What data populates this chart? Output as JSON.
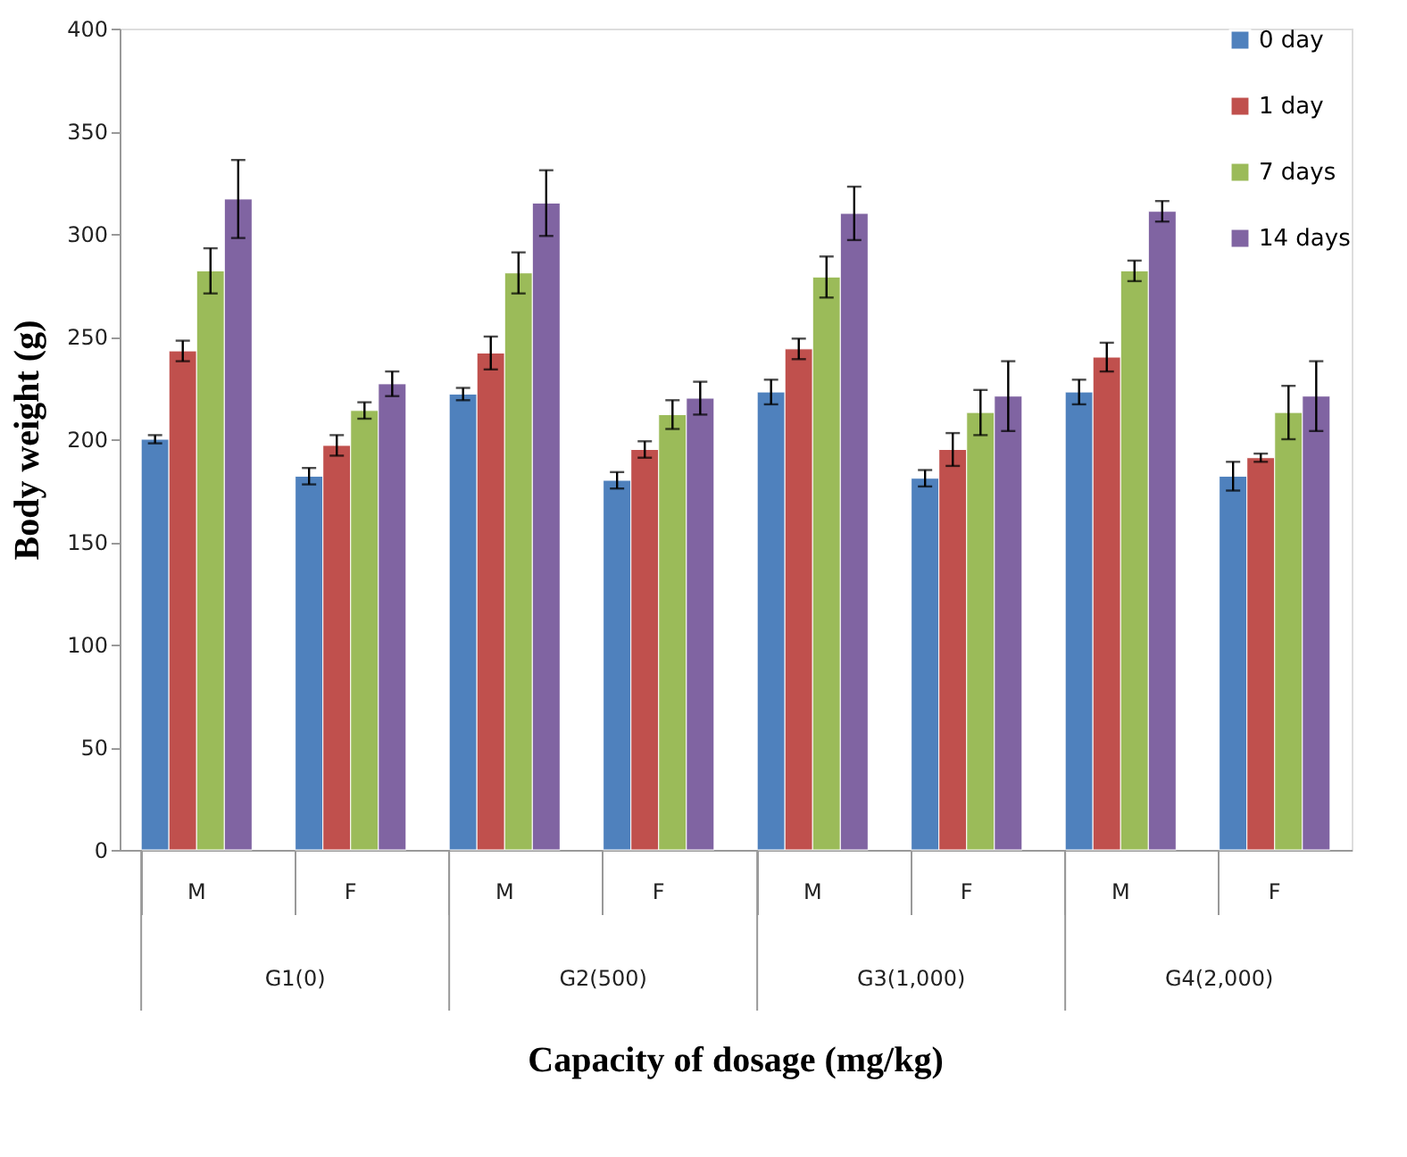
{
  "chart_data": {
    "type": "bar",
    "xlabel": "Capacity of dosage (mg/kg)",
    "ylabel": "Body weight (g)",
    "categories": [
      "M",
      "F",
      "M",
      "F",
      "M",
      "F",
      "M",
      "F"
    ],
    "annotations": [
      "G1(0)",
      "G2(500)",
      "G3(1,000)",
      "G4(2,000)"
    ],
    "series": [
      {
        "name": "0 day",
        "color": "#4f81bd",
        "values": [
          200,
          182,
          222,
          180,
          223,
          181,
          223,
          182
        ],
        "errors": [
          2,
          4,
          3,
          4,
          6,
          4,
          6,
          7
        ]
      },
      {
        "name": "1 day",
        "color": "#c0504d",
        "values": [
          243,
          197,
          242,
          195,
          244,
          195,
          240,
          191
        ],
        "errors": [
          5,
          5,
          8,
          4,
          5,
          8,
          7,
          2
        ]
      },
      {
        "name": "7 days",
        "color": "#9bbb59",
        "values": [
          282,
          214,
          281,
          212,
          279,
          213,
          282,
          213
        ],
        "errors": [
          11,
          4,
          10,
          7,
          10,
          11,
          5,
          13
        ]
      },
      {
        "name": "14 days",
        "color": "#8064a2",
        "values": [
          317,
          227,
          315,
          220,
          310,
          221,
          311,
          221
        ],
        "errors": [
          19,
          6,
          16,
          8,
          13,
          17,
          5,
          17
        ]
      }
    ],
    "ylim": [
      0,
      400
    ],
    "yticks": [
      0,
      50,
      100,
      150,
      200,
      250,
      300,
      350,
      400
    ],
    "grid": false,
    "legend": "top right"
  }
}
